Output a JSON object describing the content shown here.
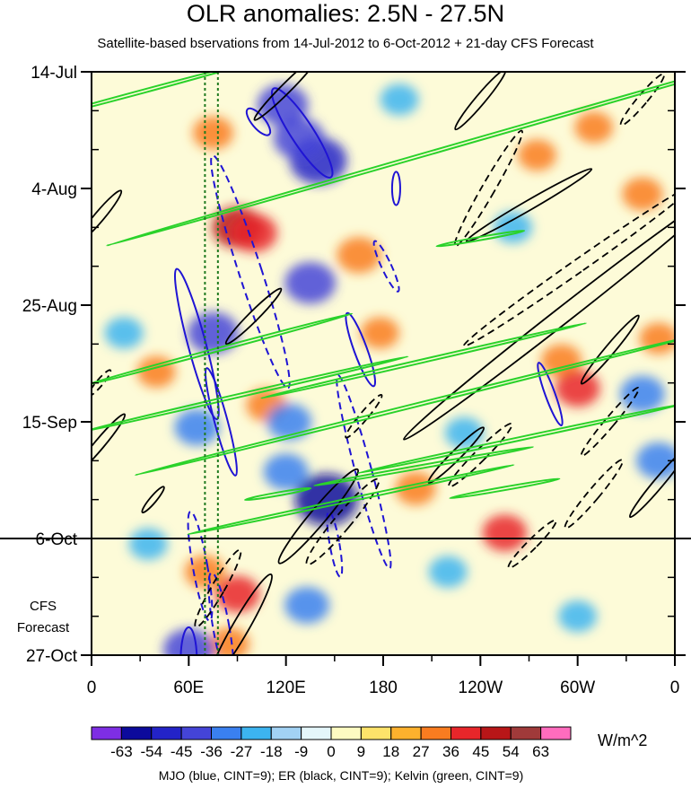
{
  "chart_data": {
    "type": "heatmap",
    "title": "OLR anomalies: 2.5N - 27.5N",
    "subtitle": "Satellite-based bservations from 14-Jul-2012 to 6-Oct-2012 + 21-day CFS Forecast",
    "y_ticks": [
      {
        "label": "14-Jul",
        "day": 0
      },
      {
        "label": "4-Aug",
        "day": 21
      },
      {
        "label": "25-Aug",
        "day": 42
      },
      {
        "label": "15-Sep",
        "day": 63
      },
      {
        "label": "6-Oct",
        "day": 84
      },
      {
        "label": "27-Oct",
        "day": 105
      }
    ],
    "x_ticks": [
      {
        "label": "0",
        "lon": 0
      },
      {
        "label": "60E",
        "lon": 60
      },
      {
        "label": "120E",
        "lon": 120
      },
      {
        "label": "180",
        "lon": 180
      },
      {
        "label": "120W",
        "lon": 240
      },
      {
        "label": "60W",
        "lon": 300
      },
      {
        "label": "0",
        "lon": 360
      }
    ],
    "observation_end_day": 84,
    "forecast_label": [
      "CFS",
      "Forecast"
    ],
    "colorbar_levels": [
      "-63",
      "-54",
      "-45",
      "-36",
      "-27",
      "-18",
      "-9",
      "0",
      "9",
      "18",
      "27",
      "36",
      "45",
      "54",
      "63"
    ],
    "colorbar_colors": [
      "#7e2ee4",
      "#0c0a9c",
      "#2323c8",
      "#4444d8",
      "#3a80f0",
      "#3cb4f0",
      "#a2d2f4",
      "#e4f6fa",
      "#fdfbc2",
      "#fde36a",
      "#fdb12d",
      "#f97c20",
      "#e8262a",
      "#b81618",
      "#a03a3a",
      "#ff6cbe"
    ],
    "units": "W/m^2",
    "contour_legend": "MJO (blue, CINT=9); ER (black, CINT=9); Kelvin (green, CINT=9)",
    "contour_colors": {
      "mjo": "#1f14d4",
      "er": "#000000",
      "kelvin": "#2ad22a"
    },
    "reference_longitudes": [
      70,
      78
    ],
    "anomaly_features": [
      {
        "lon": 75,
        "day": 11,
        "value": 30
      },
      {
        "lon": 90,
        "day": 28,
        "value": 45
      },
      {
        "lon": 100,
        "day": 29,
        "value": 40
      },
      {
        "lon": 165,
        "day": 33,
        "value": 35
      },
      {
        "lon": 108,
        "day": 60,
        "value": 30
      },
      {
        "lon": 290,
        "day": 52,
        "value": 30
      },
      {
        "lon": 300,
        "day": 57,
        "value": 36
      },
      {
        "lon": 275,
        "day": 15,
        "value": 27
      },
      {
        "lon": 310,
        "day": 10,
        "value": 27
      },
      {
        "lon": 340,
        "day": 22,
        "value": 30
      },
      {
        "lon": 90,
        "day": 94,
        "value": 36
      },
      {
        "lon": 70,
        "day": 90,
        "value": 30
      },
      {
        "lon": 85,
        "day": 103,
        "value": 30
      },
      {
        "lon": 255,
        "day": 83,
        "value": 36
      },
      {
        "lon": 200,
        "day": 75,
        "value": 30
      },
      {
        "lon": 40,
        "day": 54,
        "value": 27
      },
      {
        "lon": 178,
        "day": 47,
        "value": 27
      },
      {
        "lon": 350,
        "day": 48,
        "value": 27
      },
      {
        "lon": 145,
        "day": 77,
        "value": -63
      },
      {
        "lon": 140,
        "day": 16,
        "value": -54
      },
      {
        "lon": 118,
        "day": 6,
        "value": -45
      },
      {
        "lon": 128,
        "day": 12,
        "value": -45
      },
      {
        "lon": 135,
        "day": 38,
        "value": -45
      },
      {
        "lon": 75,
        "day": 47,
        "value": -45
      },
      {
        "lon": 122,
        "day": 63,
        "value": -36
      },
      {
        "lon": 120,
        "day": 72,
        "value": -36
      },
      {
        "lon": 65,
        "day": 64,
        "value": -36
      },
      {
        "lon": 60,
        "day": 104,
        "value": -45
      },
      {
        "lon": 133,
        "day": 96,
        "value": -36
      },
      {
        "lon": 190,
        "day": 5,
        "value": -27
      },
      {
        "lon": 260,
        "day": 28,
        "value": -27
      },
      {
        "lon": 340,
        "day": 58,
        "value": -36
      },
      {
        "lon": 350,
        "day": 70,
        "value": -36
      },
      {
        "lon": 20,
        "day": 47,
        "value": -27
      },
      {
        "lon": 35,
        "day": 85,
        "value": -27
      },
      {
        "lon": 220,
        "day": 90,
        "value": -27
      },
      {
        "lon": 300,
        "day": 98,
        "value": -27
      },
      {
        "lon": 230,
        "day": 65,
        "value": -27
      }
    ],
    "mjo_contours": [
      {
        "lon": 130,
        "day": 11,
        "rx": 7,
        "ry": 9.5,
        "angle": -33,
        "dashed": false
      },
      {
        "lon": 103,
        "day": 9,
        "rx": 4,
        "ry": 3,
        "angle": -40,
        "dashed": false
      },
      {
        "lon": 65,
        "day": 49,
        "rx": 5.5,
        "ry": 14,
        "angle": -15,
        "dashed": false
      },
      {
        "lon": 80,
        "day": 63,
        "rx": 4,
        "ry": 10,
        "angle": -15,
        "dashed": false
      },
      {
        "lon": 98,
        "day": 36,
        "rx": 7,
        "ry": 22,
        "angle": -18,
        "dashed": true
      },
      {
        "lon": 166,
        "day": 50,
        "rx": 4,
        "ry": 7,
        "angle": -20,
        "dashed": false
      },
      {
        "lon": 168,
        "day": 72,
        "rx": 5,
        "ry": 18,
        "angle": -15,
        "dashed": true
      },
      {
        "lon": 182,
        "day": 35,
        "rx": 3,
        "ry": 5,
        "angle": -25,
        "dashed": true
      },
      {
        "lon": 188,
        "day": 21,
        "rx": 2.5,
        "ry": 3,
        "angle": 0,
        "dashed": false
      },
      {
        "lon": 67,
        "day": 89,
        "rx": 4.5,
        "ry": 10,
        "angle": -10,
        "dashed": true
      },
      {
        "lon": 80,
        "day": 100,
        "rx": 5,
        "ry": 10,
        "angle": -10,
        "dashed": true
      },
      {
        "lon": 150,
        "day": 85,
        "rx": 3,
        "ry": 6,
        "angle": -10,
        "dashed": true
      },
      {
        "lon": 283,
        "day": 58,
        "rx": 3,
        "ry": 6,
        "angle": -20,
        "dashed": false
      },
      {
        "lon": 60,
        "day": 106,
        "rx": 5,
        "ry": 6,
        "angle": 0,
        "dashed": false
      }
    ],
    "er_contours": [
      {
        "lon": 140,
        "day": 80,
        "rx": 5,
        "ry": 11,
        "angle": 40,
        "dashed": false
      },
      {
        "lon": 155,
        "day": 81,
        "rx": 5,
        "ry": 10,
        "angle": 40,
        "dashed": true
      },
      {
        "lon": 92,
        "day": 100,
        "rx": 5,
        "ry": 11,
        "angle": 30,
        "dashed": false
      },
      {
        "lon": 78,
        "day": 93,
        "rx": 4,
        "ry": 8,
        "angle": 30,
        "dashed": true
      },
      {
        "lon": 225,
        "day": 69,
        "rx": 3,
        "ry": 7,
        "angle": 45,
        "dashed": false
      },
      {
        "lon": 240,
        "day": 69,
        "rx": 3.5,
        "ry": 8,
        "angle": 45,
        "dashed": true
      },
      {
        "lon": 245,
        "day": 21,
        "rx": 4,
        "ry": 12,
        "angle": 30,
        "dashed": true
      },
      {
        "lon": 270,
        "day": 24,
        "rx": 3,
        "ry": 13,
        "angle": 60,
        "dashed": false
      },
      {
        "lon": 290,
        "day": 44,
        "rx": 5,
        "ry": 36,
        "angle": 52,
        "dashed": false
      },
      {
        "lon": 300,
        "day": 35,
        "rx": 4,
        "ry": 25,
        "angle": 55,
        "dashed": true
      },
      {
        "lon": 320,
        "day": 50,
        "rx": 3,
        "ry": 8,
        "angle": 40,
        "dashed": false
      },
      {
        "lon": 310,
        "day": 76,
        "rx": 3.5,
        "ry": 8,
        "angle": 40,
        "dashed": true
      },
      {
        "lon": 350,
        "day": 74,
        "rx": 3,
        "ry": 8,
        "angle": 40,
        "dashed": false
      },
      {
        "lon": 320,
        "day": 63,
        "rx": 3,
        "ry": 8,
        "angle": 40,
        "dashed": true
      },
      {
        "lon": 240,
        "day": 5,
        "rx": 3,
        "ry": 7,
        "angle": 40,
        "dashed": false
      },
      {
        "lon": 340,
        "day": 5,
        "rx": 3,
        "ry": 6,
        "angle": 40,
        "dashed": true
      },
      {
        "lon": 120,
        "day": 3,
        "rx": 3,
        "ry": 8,
        "angle": 45,
        "dashed": false
      },
      {
        "lon": 5,
        "day": 26,
        "rx": 3,
        "ry": 6,
        "angle": 40,
        "dashed": false
      },
      {
        "lon": 5,
        "day": 67,
        "rx": 3,
        "ry": 7,
        "angle": 40,
        "dashed": false
      },
      {
        "lon": 5,
        "day": 56,
        "rx": 2,
        "ry": 3,
        "angle": 40,
        "dashed": true
      },
      {
        "lon": 38,
        "day": 77,
        "rx": 2,
        "ry": 3,
        "angle": 40,
        "dashed": false
      },
      {
        "lon": 100,
        "day": 44,
        "rx": 3,
        "ry": 7,
        "angle": 45,
        "dashed": false
      },
      {
        "lon": 272,
        "day": 85,
        "rx": 3,
        "ry": 6,
        "angle": 45,
        "dashed": true
      },
      {
        "lon": 168,
        "day": 62,
        "rx": 2.5,
        "ry": 5,
        "angle": 40,
        "dashed": true
      }
    ],
    "kelvin_contours": [
      {
        "lon": 32,
        "day": 3.5,
        "rx": 1,
        "ry": 19,
        "angle": 75,
        "dashed": false
      },
      {
        "lon": 240,
        "day": 12,
        "rx": 1,
        "ry": 70,
        "angle": 74,
        "dashed": false
      },
      {
        "lon": 78,
        "day": 50,
        "rx": 1,
        "ry": 25,
        "angle": 75,
        "dashed": false
      },
      {
        "lon": 95,
        "day": 58,
        "rx": 1,
        "ry": 30,
        "angle": 77,
        "dashed": false
      },
      {
        "lon": 205,
        "day": 52,
        "rx": 1,
        "ry": 30,
        "angle": 77,
        "dashed": false
      },
      {
        "lon": 200,
        "day": 60,
        "rx": 1,
        "ry": 52,
        "angle": 76,
        "dashed": false
      },
      {
        "lon": 265,
        "day": 66,
        "rx": 1,
        "ry": 30,
        "angle": 78,
        "dashed": false
      },
      {
        "lon": 160,
        "day": 77,
        "rx": 1,
        "ry": 30,
        "angle": 78,
        "dashed": false
      },
      {
        "lon": 205,
        "day": 71,
        "rx": 1,
        "ry": 20,
        "angle": 80,
        "dashed": false
      },
      {
        "lon": 255,
        "day": 75,
        "rx": 1,
        "ry": 10,
        "angle": 80,
        "dashed": false
      },
      {
        "lon": 240,
        "day": 30,
        "rx": 1,
        "ry": 8,
        "angle": 80,
        "dashed": false
      },
      {
        "lon": 115,
        "day": 76,
        "rx": 1,
        "ry": 6,
        "angle": 80,
        "dashed": false
      }
    ]
  }
}
